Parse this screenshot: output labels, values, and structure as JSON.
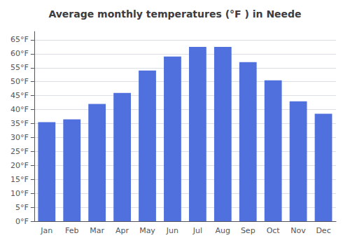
{
  "chart_data": {
    "type": "bar",
    "title": "Average monthly temperatures (°F ) in Neede",
    "categories": [
      "Jan",
      "Feb",
      "Mar",
      "Apr",
      "May",
      "Jun",
      "Jul",
      "Aug",
      "Sep",
      "Oct",
      "Nov",
      "Dec"
    ],
    "values": [
      35.5,
      36.5,
      42.0,
      46.0,
      54.0,
      59.0,
      62.5,
      62.5,
      57.0,
      50.5,
      43.0,
      38.5
    ],
    "ylim": [
      0,
      68
    ],
    "yticks": [
      {
        "value": 0,
        "label": "0°F"
      },
      {
        "value": 5,
        "label": "5°F"
      },
      {
        "value": 10,
        "label": "10°F"
      },
      {
        "value": 15,
        "label": "15°F"
      },
      {
        "value": 20,
        "label": "20°F"
      },
      {
        "value": 25,
        "label": "25°F"
      },
      {
        "value": 30,
        "label": "30°F"
      },
      {
        "value": 35,
        "label": "35°F"
      },
      {
        "value": 40,
        "label": "40°F"
      },
      {
        "value": 45,
        "label": "45°F"
      },
      {
        "value": 50,
        "label": "50°F"
      },
      {
        "value": 55,
        "label": "55°F"
      },
      {
        "value": 60,
        "label": "60°F"
      },
      {
        "value": 65,
        "label": "65°F"
      }
    ],
    "grid": true
  }
}
